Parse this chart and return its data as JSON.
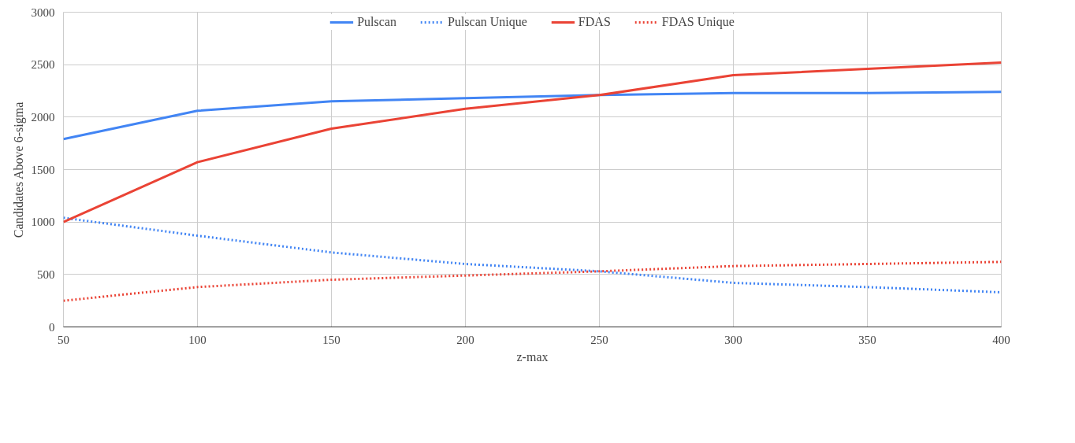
{
  "chart_data": {
    "type": "line",
    "xlabel": "z-max",
    "ylabel": "Candidates Above 6-sigma",
    "x": [
      50,
      100,
      150,
      200,
      250,
      300,
      350,
      400
    ],
    "series": [
      {
        "name": "Pulscan",
        "color": "#4285f4",
        "line_style": "solid",
        "values": [
          1790,
          2060,
          2150,
          2180,
          2210,
          2230,
          2230,
          2240
        ]
      },
      {
        "name": "Pulscan Unique",
        "color": "#4285f4",
        "line_style": "dotted",
        "values": [
          1040,
          870,
          710,
          600,
          530,
          420,
          380,
          330
        ]
      },
      {
        "name": "FDAS",
        "color": "#ea4335",
        "line_style": "solid",
        "values": [
          1000,
          1570,
          1890,
          2080,
          2210,
          2400,
          2460,
          2520
        ]
      },
      {
        "name": "FDAS Unique",
        "color": "#ea4335",
        "line_style": "dotted",
        "values": [
          250,
          380,
          450,
          490,
          530,
          580,
          600,
          620
        ]
      }
    ],
    "xlim": [
      50,
      400
    ],
    "xticks": [
      50,
      100,
      150,
      200,
      250,
      300,
      350,
      400
    ],
    "ylim": [
      0,
      3000
    ],
    "yticks": [
      0,
      500,
      1000,
      1500,
      2000,
      2500,
      3000
    ],
    "grid": true,
    "legend": "top"
  }
}
